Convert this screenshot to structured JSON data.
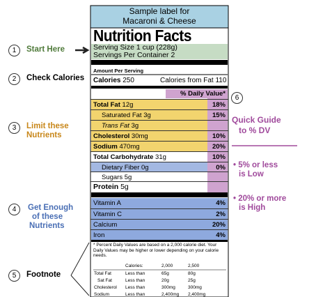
{
  "label": {
    "header": [
      "Sample label for",
      "Macaroni & Cheese"
    ],
    "title": "Nutrition Facts",
    "serving_size": "Serving Size 1 cup (228g)",
    "servings": "Servings Per Container 2",
    "amount_per_serving": "Amount Per Serving",
    "calories": "Calories",
    "calories_value": "250",
    "calories_from_fat": "Calories from Fat 110",
    "dv_header": "% Daily Value*",
    "nutrients": [
      {
        "name": "Total Fat",
        "amount": "12g",
        "dv": "18%"
      },
      {
        "name": "Saturated Fat",
        "amount": "3g",
        "dv": "15%"
      },
      {
        "name": "Trans Fat",
        "amount": "3g"
      },
      {
        "name": "Cholesterol",
        "amount": "30mg",
        "dv": "10%"
      },
      {
        "name": "Sodium",
        "amount": "470mg",
        "dv": "20%"
      },
      {
        "name": "Total Carbohydrate",
        "amount": "31g",
        "dv": "10%"
      },
      {
        "name": "Dietary Fiber",
        "amount": "0g",
        "dv": "0%"
      },
      {
        "name": "Sugars",
        "amount": "5g"
      },
      {
        "name": "Protein",
        "amount": "5g"
      }
    ],
    "vitamins": [
      {
        "name": "Vitamin A",
        "dv": "4%"
      },
      {
        "name": "Vitamin C",
        "dv": "2%"
      },
      {
        "name": "Calcium",
        "dv": "20%"
      },
      {
        "name": "Iron",
        "dv": "4%"
      }
    ],
    "footnote": "* Percent Daily Values are based on a 2,000 calorie diet. Your Daily Values may be higher or lower depending on your calorie needs.",
    "footnote_table": {
      "header": [
        "Calories:",
        "2,000",
        "2,500"
      ],
      "rows": [
        [
          "Total Fat",
          "Less than",
          "65g",
          "80g"
        ],
        [
          "Sat Fat",
          "Less than",
          "20g",
          "25g"
        ],
        [
          "Cholesterol",
          "Less than",
          "300mg",
          "300mg"
        ],
        [
          "Sodium",
          "Less than",
          "2,400mg",
          "2,400mg"
        ]
      ]
    }
  },
  "annotations": [
    {
      "number": "1",
      "text": [
        "Start Here"
      ]
    },
    {
      "number": "2",
      "text": [
        "Check Calories"
      ]
    },
    {
      "number": "3",
      "text": [
        "Limit these",
        "Nutrients"
      ]
    },
    {
      "number": "4",
      "text": [
        "Get Enough",
        "of these",
        "Nutrients"
      ]
    },
    {
      "number": "5",
      "text": [
        "Footnote"
      ]
    }
  ],
  "guide": {
    "number": "6",
    "title": [
      "Quick Guide",
      "to % DV"
    ],
    "points": [
      [
        "• 5% or less",
        "is Low"
      ],
      [
        "• 20% or more",
        "is High"
      ]
    ]
  }
}
